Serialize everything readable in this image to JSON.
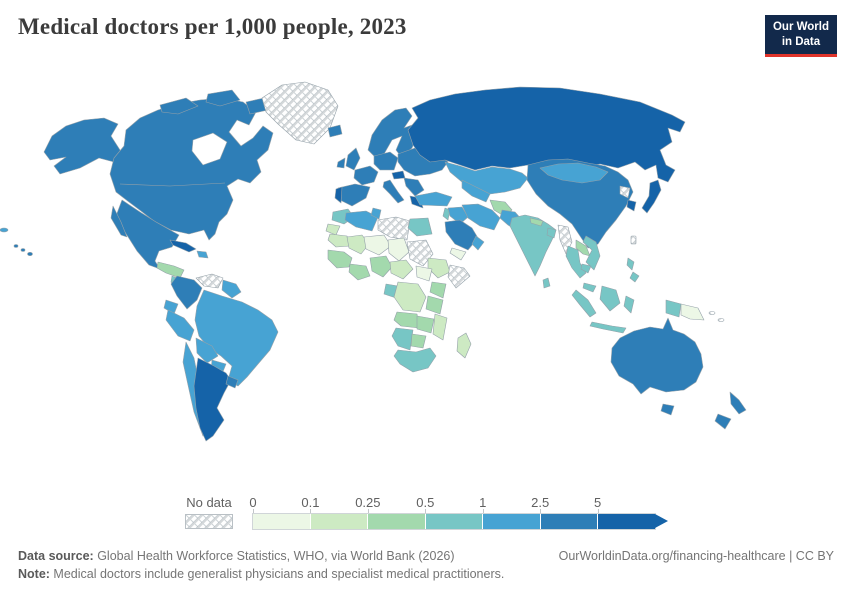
{
  "header": {
    "title": "Medical doctors per 1,000 people, 2023"
  },
  "logo": {
    "line1": "Our World",
    "line2": "in Data",
    "bg": "#12294b",
    "accent": "#e0342b"
  },
  "legend": {
    "no_data_label": "No data",
    "ticks": [
      "0",
      "0.1",
      "0.25",
      "0.5",
      "1",
      "2.5",
      "5"
    ],
    "colors": [
      "#ecf7e6",
      "#cdeac3",
      "#a3d9ad",
      "#77c6c5",
      "#47a3d3",
      "#2e7eb7",
      "#1563a8"
    ],
    "nodata_stroke": "#c4cacd"
  },
  "chart_data": {
    "type": "heatmap",
    "title": "Medical doctors per 1,000 people, 2023",
    "legend_bins": [
      "0-0.1",
      "0.1-0.25",
      "0.25-0.5",
      "0.5-1",
      "1-2.5",
      "2.5-5",
      "5+"
    ],
    "legend_position": "bottom",
    "units": "doctors per 1,000 people"
  },
  "map": {
    "stroke": "#94a1a9",
    "nodata_stroke": "#c4cacd",
    "regions": {
      "alaska": 5,
      "canada-us": 5,
      "arctic-a": 5,
      "arctic-b": 5,
      "arctic-c": 5,
      "greenland": "nodata",
      "iceland": 5,
      "mexico": 5,
      "baja": 5,
      "guatemala-honduras": 2,
      "nicaragua-costarica": 3,
      "panama": "nodata",
      "cuba": 6,
      "hispaniola": 4,
      "hawaii": 5,
      "pacific-west": 4,
      "venezuela": "nodata",
      "colombia": 5,
      "guyanas": 4,
      "ecuador": 4,
      "peru": 4,
      "brazil": 4,
      "bolivia": 4,
      "paraguay": 4,
      "chile": 4,
      "argentina": 6,
      "uruguay": 5,
      "uk": 5,
      "ireland": 5,
      "iberia": 5,
      "portugal": 6,
      "france": 5,
      "germany": 5,
      "italy": 5,
      "austria": 6,
      "scandinavia": 5,
      "east-europe": 5,
      "balkans": 5,
      "greece": 6,
      "russia": 6,
      "kazakhstan": 4,
      "central-asia": 4,
      "turkey": 4,
      "levant": 3,
      "iraq": 4,
      "iran": 4,
      "saudi": 5,
      "yemen": 0,
      "oman": 4,
      "afghanistan": 2,
      "pakistan": 4,
      "india": 3,
      "sri-lanka": 3,
      "nepal": 2,
      "bangladesh": 3,
      "china": 5,
      "mongolia": 4,
      "myanmar": "nodata",
      "thailand": 3,
      "laos": 2,
      "vietnam": 3,
      "cambodia": 3,
      "north-korea": "nodata",
      "south-korea": 6,
      "japan": 6,
      "taiwan": "nodata",
      "philippines": 3,
      "malaysia": 3,
      "sumatra": 3,
      "borneo": 3,
      "java": 3,
      "sulawesi": 3,
      "west-papua": 3,
      "png": 0,
      "solomon": "nodata",
      "australia": 5,
      "tasmania": 5,
      "new-zealand": 5,
      "morocco": 3,
      "algeria": 4,
      "tunisia": 4,
      "libya": "nodata",
      "egypt": 3,
      "western-sahara": 1,
      "mauritania": 1,
      "mali": 1,
      "niger": 0,
      "chad": 0,
      "sudan": "nodata",
      "senegal-guinea": 2,
      "ivory-ghana": 2,
      "nigeria": 2,
      "cameroon-car": 1,
      "ethiopia": 1,
      "somalia": "nodata",
      "south-sudan": 0,
      "kenya": 2,
      "gabon-congo": 3,
      "drc": 1,
      "tanzania": 2,
      "angola": 2,
      "zambia": 2,
      "mozambique": 1,
      "namibia": 3,
      "botswana": 2,
      "south-africa": 3,
      "madagascar": 1
    }
  },
  "footer": {
    "data_source_label": "Data source:",
    "data_source_text": " Global Health Workforce Statistics, WHO, via World Bank (2026)",
    "note_label": "Note:",
    "note_text": " Medical doctors include generalist physicians and specialist medical practitioners.",
    "right_text": "OurWorldinData.org/financing-healthcare | CC BY"
  }
}
